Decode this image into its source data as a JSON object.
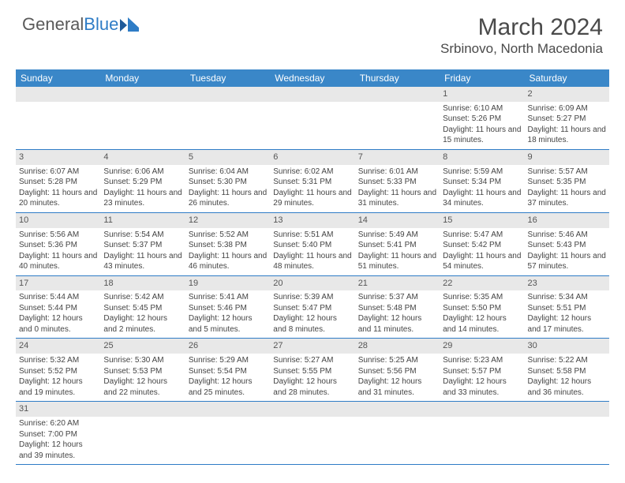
{
  "brand": {
    "part1": "General",
    "part2": "Blue"
  },
  "title": "March 2024",
  "location": "Srbinovo, North Macedonia",
  "colors": {
    "header_bg": "#3a87c8",
    "header_text": "#ffffff",
    "daynum_bg": "#e8e8e8",
    "cell_border": "#2e7cc6",
    "text": "#444444",
    "logo_gray": "#5a5a5a",
    "logo_blue": "#2e7cc6"
  },
  "daysOfWeek": [
    "Sunday",
    "Monday",
    "Tuesday",
    "Wednesday",
    "Thursday",
    "Friday",
    "Saturday"
  ],
  "startOffset": 5,
  "days": [
    {
      "n": 1,
      "sr": "6:10 AM",
      "ss": "5:26 PM",
      "dl": "11 hours and 15 minutes."
    },
    {
      "n": 2,
      "sr": "6:09 AM",
      "ss": "5:27 PM",
      "dl": "11 hours and 18 minutes."
    },
    {
      "n": 3,
      "sr": "6:07 AM",
      "ss": "5:28 PM",
      "dl": "11 hours and 20 minutes."
    },
    {
      "n": 4,
      "sr": "6:06 AM",
      "ss": "5:29 PM",
      "dl": "11 hours and 23 minutes."
    },
    {
      "n": 5,
      "sr": "6:04 AM",
      "ss": "5:30 PM",
      "dl": "11 hours and 26 minutes."
    },
    {
      "n": 6,
      "sr": "6:02 AM",
      "ss": "5:31 PM",
      "dl": "11 hours and 29 minutes."
    },
    {
      "n": 7,
      "sr": "6:01 AM",
      "ss": "5:33 PM",
      "dl": "11 hours and 31 minutes."
    },
    {
      "n": 8,
      "sr": "5:59 AM",
      "ss": "5:34 PM",
      "dl": "11 hours and 34 minutes."
    },
    {
      "n": 9,
      "sr": "5:57 AM",
      "ss": "5:35 PM",
      "dl": "11 hours and 37 minutes."
    },
    {
      "n": 10,
      "sr": "5:56 AM",
      "ss": "5:36 PM",
      "dl": "11 hours and 40 minutes."
    },
    {
      "n": 11,
      "sr": "5:54 AM",
      "ss": "5:37 PM",
      "dl": "11 hours and 43 minutes."
    },
    {
      "n": 12,
      "sr": "5:52 AM",
      "ss": "5:38 PM",
      "dl": "11 hours and 46 minutes."
    },
    {
      "n": 13,
      "sr": "5:51 AM",
      "ss": "5:40 PM",
      "dl": "11 hours and 48 minutes."
    },
    {
      "n": 14,
      "sr": "5:49 AM",
      "ss": "5:41 PM",
      "dl": "11 hours and 51 minutes."
    },
    {
      "n": 15,
      "sr": "5:47 AM",
      "ss": "5:42 PM",
      "dl": "11 hours and 54 minutes."
    },
    {
      "n": 16,
      "sr": "5:46 AM",
      "ss": "5:43 PM",
      "dl": "11 hours and 57 minutes."
    },
    {
      "n": 17,
      "sr": "5:44 AM",
      "ss": "5:44 PM",
      "dl": "12 hours and 0 minutes."
    },
    {
      "n": 18,
      "sr": "5:42 AM",
      "ss": "5:45 PM",
      "dl": "12 hours and 2 minutes."
    },
    {
      "n": 19,
      "sr": "5:41 AM",
      "ss": "5:46 PM",
      "dl": "12 hours and 5 minutes."
    },
    {
      "n": 20,
      "sr": "5:39 AM",
      "ss": "5:47 PM",
      "dl": "12 hours and 8 minutes."
    },
    {
      "n": 21,
      "sr": "5:37 AM",
      "ss": "5:48 PM",
      "dl": "12 hours and 11 minutes."
    },
    {
      "n": 22,
      "sr": "5:35 AM",
      "ss": "5:50 PM",
      "dl": "12 hours and 14 minutes."
    },
    {
      "n": 23,
      "sr": "5:34 AM",
      "ss": "5:51 PM",
      "dl": "12 hours and 17 minutes."
    },
    {
      "n": 24,
      "sr": "5:32 AM",
      "ss": "5:52 PM",
      "dl": "12 hours and 19 minutes."
    },
    {
      "n": 25,
      "sr": "5:30 AM",
      "ss": "5:53 PM",
      "dl": "12 hours and 22 minutes."
    },
    {
      "n": 26,
      "sr": "5:29 AM",
      "ss": "5:54 PM",
      "dl": "12 hours and 25 minutes."
    },
    {
      "n": 27,
      "sr": "5:27 AM",
      "ss": "5:55 PM",
      "dl": "12 hours and 28 minutes."
    },
    {
      "n": 28,
      "sr": "5:25 AM",
      "ss": "5:56 PM",
      "dl": "12 hours and 31 minutes."
    },
    {
      "n": 29,
      "sr": "5:23 AM",
      "ss": "5:57 PM",
      "dl": "12 hours and 33 minutes."
    },
    {
      "n": 30,
      "sr": "5:22 AM",
      "ss": "5:58 PM",
      "dl": "12 hours and 36 minutes."
    },
    {
      "n": 31,
      "sr": "6:20 AM",
      "ss": "7:00 PM",
      "dl": "12 hours and 39 minutes."
    }
  ],
  "labels": {
    "sunrise": "Sunrise:",
    "sunset": "Sunset:",
    "daylight": "Daylight:"
  }
}
